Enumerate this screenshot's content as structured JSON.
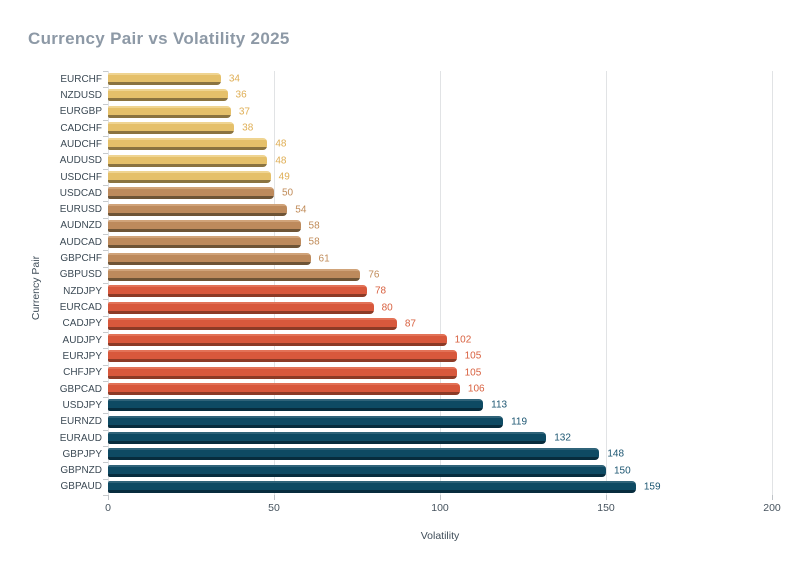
{
  "chart_data": {
    "type": "bar",
    "orientation": "horizontal",
    "title": "Currency Pair vs Volatility 2025",
    "xlabel": "Volatility",
    "ylabel": "Currency Pair",
    "xlim": [
      0,
      200
    ],
    "xticks": [
      "0",
      "50",
      "100",
      "150",
      "200"
    ],
    "grid": true,
    "legend": false,
    "title_color": "#8D99A6",
    "bars": [
      {
        "label": "EURCHF",
        "value": 34,
        "group": "gold"
      },
      {
        "label": "NZDUSD",
        "value": 36,
        "group": "gold"
      },
      {
        "label": "EURGBP",
        "value": 37,
        "group": "gold"
      },
      {
        "label": "CADCHF",
        "value": 38,
        "group": "gold"
      },
      {
        "label": "AUDCHF",
        "value": 48,
        "group": "gold"
      },
      {
        "label": "AUDUSD",
        "value": 48,
        "group": "gold"
      },
      {
        "label": "USDCHF",
        "value": 49,
        "group": "gold"
      },
      {
        "label": "USDCAD",
        "value": 50,
        "group": "tan"
      },
      {
        "label": "EURUSD",
        "value": 54,
        "group": "tan"
      },
      {
        "label": "AUDNZD",
        "value": 58,
        "group": "tan"
      },
      {
        "label": "AUDCAD",
        "value": 58,
        "group": "tan"
      },
      {
        "label": "GBPCHF",
        "value": 61,
        "group": "tan"
      },
      {
        "label": "GBPUSD",
        "value": 76,
        "group": "tan"
      },
      {
        "label": "NZDJPY",
        "value": 78,
        "group": "red"
      },
      {
        "label": "EURCAD",
        "value": 80,
        "group": "red"
      },
      {
        "label": "CADJPY",
        "value": 87,
        "group": "red"
      },
      {
        "label": "AUDJPY",
        "value": 102,
        "group": "red"
      },
      {
        "label": "EURJPY",
        "value": 105,
        "group": "red"
      },
      {
        "label": "CHFJPY",
        "value": 105,
        "group": "red"
      },
      {
        "label": "GBPCAD",
        "value": 106,
        "group": "red"
      },
      {
        "label": "USDJPY",
        "value": 113,
        "group": "navy"
      },
      {
        "label": "EURNZD",
        "value": 119,
        "group": "navy"
      },
      {
        "label": "EURAUD",
        "value": 132,
        "group": "navy"
      },
      {
        "label": "GBPJPY",
        "value": 148,
        "group": "navy"
      },
      {
        "label": "GBPNZD",
        "value": 150,
        "group": "navy"
      },
      {
        "label": "GBPAUD",
        "value": 159,
        "group": "navy"
      }
    ],
    "palette": {
      "gold": {
        "main": "#E5C06A",
        "light": "#EFD491",
        "dark": "#8A7340",
        "label": "#DFAE54"
      },
      "tan": {
        "main": "#BD8A5C",
        "light": "#D0A379",
        "dark": "#6E5436",
        "label": "#C08B58"
      },
      "red": {
        "main": "#D8583C",
        "light": "#E27257",
        "dark": "#8C3A26",
        "label": "#D8603F"
      },
      "navy": {
        "main": "#0E4A63",
        "light": "#2F6379",
        "dark": "#072C3D",
        "label": "#1B5571"
      }
    }
  }
}
